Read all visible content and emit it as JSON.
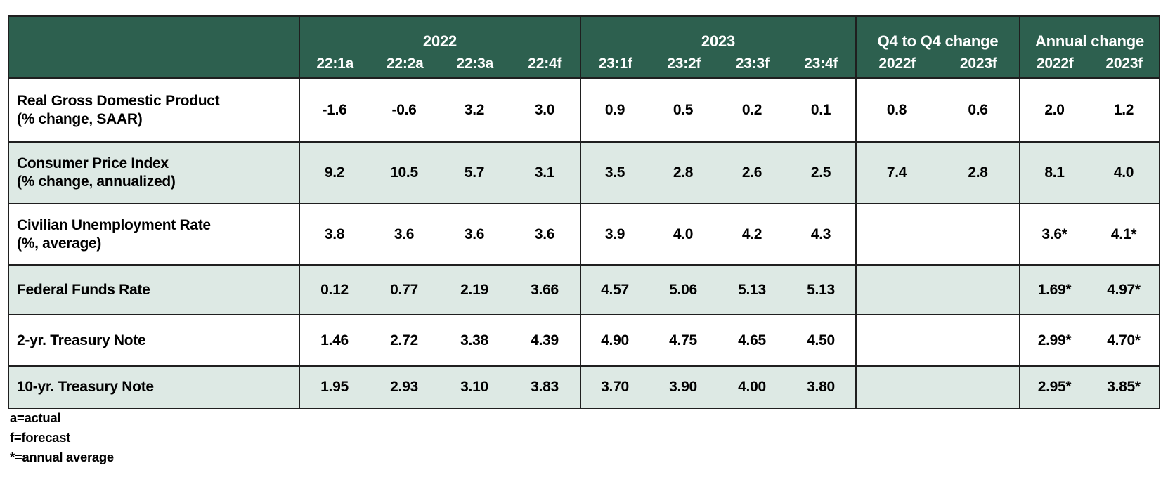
{
  "colors": {
    "header_bg": "#2d604f",
    "header_text": "#ffffff",
    "row_bg": "#ffffff",
    "row_alt_bg": "#dde9e4",
    "border": "#1f1f1f",
    "body_text": "#000000"
  },
  "table": {
    "groups": [
      {
        "label": "2022",
        "cols": [
          "22:1a",
          "22:2a",
          "22:3a",
          "22:4f"
        ]
      },
      {
        "label": "2023",
        "cols": [
          "23:1f",
          "23:2f",
          "23:3f",
          "23:4f"
        ]
      },
      {
        "label": "Q4 to Q4 change",
        "cols": [
          "2022f",
          "2023f"
        ]
      },
      {
        "label": "Annual change",
        "cols": [
          "2022f",
          "2023f"
        ]
      }
    ],
    "rows": [
      {
        "label": "Real Gross Domestic Product",
        "sublabel": "(% change, SAAR)",
        "values": [
          "-1.6",
          "-0.6",
          "3.2",
          "3.0",
          "0.9",
          "0.5",
          "0.2",
          "0.1",
          "0.8",
          "0.6",
          "2.0",
          "1.2"
        ]
      },
      {
        "label": "Consumer Price Index",
        "sublabel": "(% change, annualized)",
        "values": [
          "9.2",
          "10.5",
          "5.7",
          "3.1",
          "3.5",
          "2.8",
          "2.6",
          "2.5",
          "7.4",
          "2.8",
          "8.1",
          "4.0"
        ]
      },
      {
        "label": "Civilian Unemployment Rate",
        "sublabel": "(%, average)",
        "values": [
          "3.8",
          "3.6",
          "3.6",
          "3.6",
          "3.9",
          "4.0",
          "4.2",
          "4.3",
          "",
          "",
          "3.6*",
          "4.1*"
        ]
      },
      {
        "label": "Federal Funds Rate",
        "sublabel": "",
        "values": [
          "0.12",
          "0.77",
          "2.19",
          "3.66",
          "4.57",
          "5.06",
          "5.13",
          "5.13",
          "",
          "",
          "1.69*",
          "4.97*"
        ]
      },
      {
        "label": "2-yr. Treasury Note",
        "sublabel": "",
        "values": [
          "1.46",
          "2.72",
          "3.38",
          "4.39",
          "4.90",
          "4.75",
          "4.65",
          "4.50",
          "",
          "",
          "2.99*",
          "4.70*"
        ]
      },
      {
        "label": "10-yr. Treasury Note",
        "sublabel": "",
        "values": [
          "1.95",
          "2.93",
          "3.10",
          "3.83",
          "3.70",
          "3.90",
          "4.00",
          "3.80",
          "",
          "",
          "2.95*",
          "3.85*"
        ]
      }
    ]
  },
  "footnotes": [
    "a=actual",
    "f=forecast",
    "*=annual average"
  ]
}
